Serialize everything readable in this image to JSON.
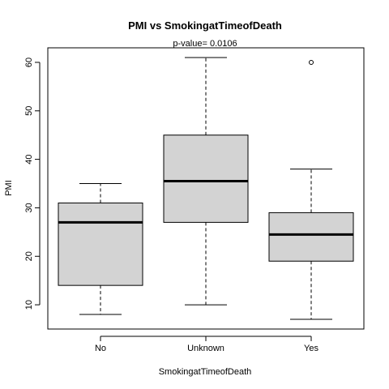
{
  "chart_data": {
    "type": "boxplot",
    "title": "PMI  vs  SmokingatTimeofDeath",
    "subtitle": "p-value= 0.0106",
    "xlabel": "SmokingatTimeofDeath",
    "ylabel": "PMI",
    "ylim": [
      5,
      63
    ],
    "yticks": [
      "10",
      "20",
      "30",
      "40",
      "50",
      "60"
    ],
    "grid": false,
    "legend": "none",
    "box_fill": "#d3d3d3",
    "categories": [
      "No",
      "Unknown",
      "Yes"
    ],
    "boxes": [
      {
        "category": "No",
        "whisker_low": 8,
        "q1": 14,
        "median": 27,
        "q3": 31,
        "whisker_high": 35,
        "outliers": []
      },
      {
        "category": "Unknown",
        "whisker_low": 10,
        "q1": 27,
        "median": 35.5,
        "q3": 45,
        "whisker_high": 61,
        "outliers": []
      },
      {
        "category": "Yes",
        "whisker_low": 7,
        "q1": 19,
        "median": 24.5,
        "q3": 29,
        "whisker_high": 38,
        "outliers": [
          60
        ]
      }
    ]
  }
}
